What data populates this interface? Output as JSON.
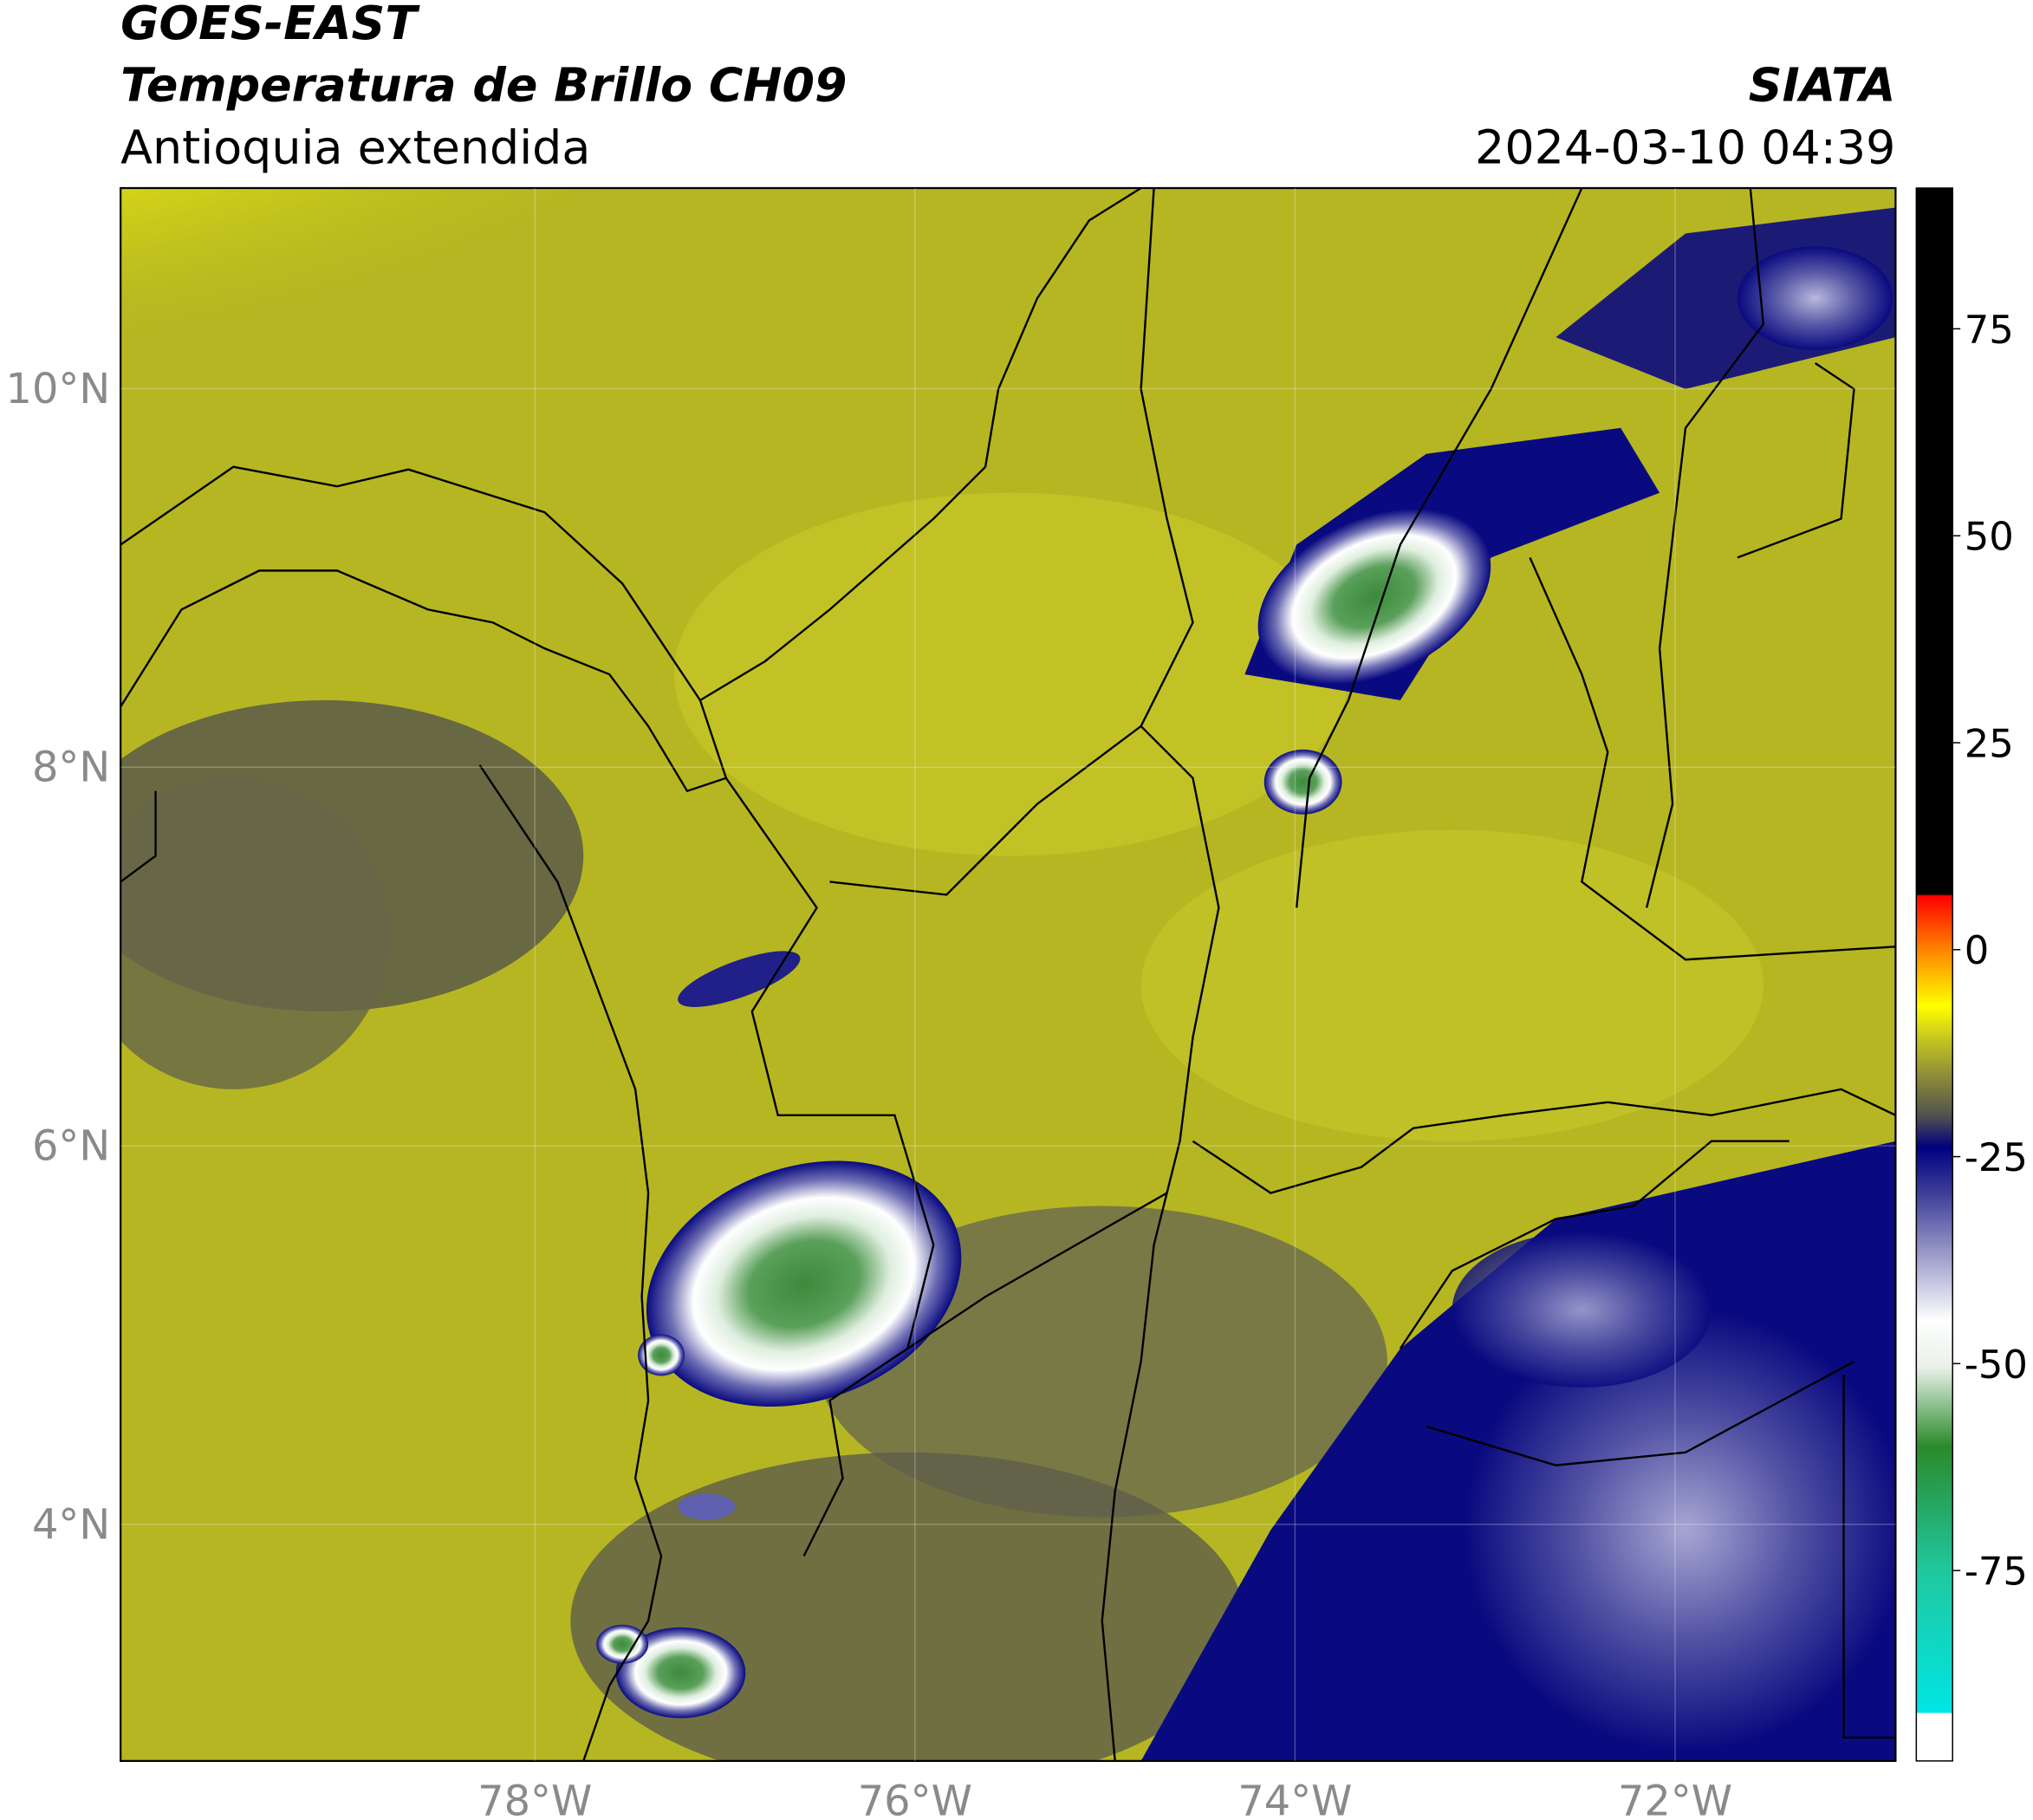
{
  "chart_data": {
    "type": "map",
    "title": "GOES-EAST",
    "subtitle": "Temperatura de Brillo CH09",
    "region": "Antioquia extendida",
    "source": "SIATA",
    "timestamp": "2024-03-10 04:39",
    "xlim": [
      -80.18,
      -70.84
    ],
    "ylim": [
      2.75,
      11.06
    ],
    "xticks": [
      {
        "value": -78,
        "label": "78°W"
      },
      {
        "value": -76,
        "label": "76°W"
      },
      {
        "value": -74,
        "label": "74°W"
      },
      {
        "value": -72,
        "label": "72°W"
      }
    ],
    "yticks": [
      {
        "value": 10,
        "label": "10°N"
      },
      {
        "value": 8,
        "label": "8°N"
      },
      {
        "value": 6,
        "label": "6°N"
      },
      {
        "value": 4,
        "label": "4°N"
      }
    ],
    "colorbar": {
      "lim": [
        -98,
        92
      ],
      "ticks": [
        75,
        50,
        25,
        0,
        -25,
        -50,
        -75
      ]
    }
  }
}
